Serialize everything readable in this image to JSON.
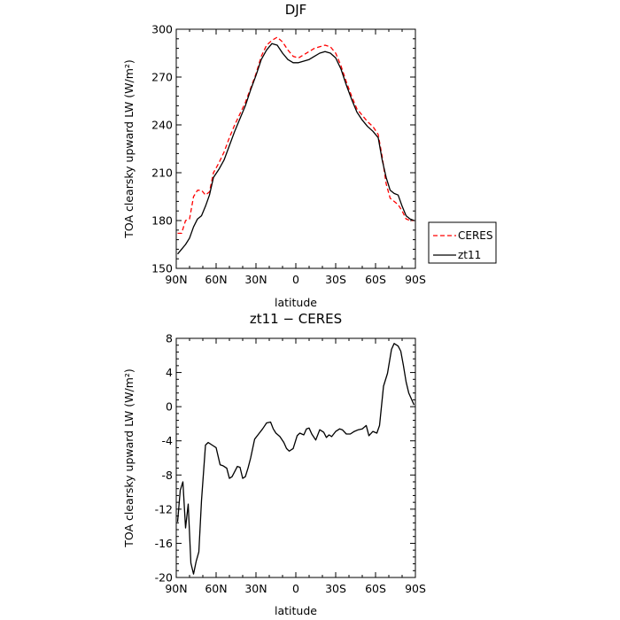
{
  "chart_data": [
    {
      "type": "line",
      "title": "DJF",
      "xlabel": "latitude",
      "ylabel": "TOA clearsky upward LW (W/m²)",
      "xlim": [
        90,
        -90
      ],
      "ylim": [
        150,
        300
      ],
      "xticks": [
        90,
        60,
        30,
        0,
        -30,
        -60,
        -90
      ],
      "xtick_labels": [
        "90N",
        "60N",
        "30N",
        "0",
        "30S",
        "60S",
        "90S"
      ],
      "yticks": [
        150,
        180,
        210,
        240,
        270,
        300
      ],
      "ytick_labels": [
        "150",
        "180",
        "210",
        "240",
        "270",
        "300"
      ],
      "legend_position": "outside-right",
      "series": [
        {
          "name": "CERES",
          "color": "#ff0000",
          "dash": "dashed",
          "x": [
            89,
            86,
            83,
            80,
            77,
            74,
            71,
            68,
            65,
            62,
            58,
            54,
            50,
            46,
            42,
            38,
            34,
            30,
            26,
            22,
            18,
            14,
            10,
            6,
            2,
            -2,
            -6,
            -10,
            -14,
            -18,
            -22,
            -26,
            -30,
            -34,
            -38,
            -42,
            -46,
            -50,
            -54,
            -58,
            -62,
            -65,
            -68,
            -71,
            -74,
            -77,
            -80,
            -83,
            -86,
            -89
          ],
          "y": [
            172,
            172,
            180,
            181,
            195,
            199,
            199,
            196,
            198,
            210,
            216,
            223,
            232,
            240,
            247,
            254,
            263,
            272,
            283,
            290,
            293,
            295,
            292,
            287,
            283,
            282,
            284,
            286,
            288,
            289,
            290,
            289,
            285,
            277,
            267,
            258,
            250,
            246,
            242,
            239,
            234,
            220,
            203,
            194,
            192,
            190,
            186,
            181,
            180,
            180
          ]
        },
        {
          "name": "zt11",
          "color": "#000000",
          "dash": "solid",
          "x": [
            89,
            86,
            83,
            80,
            77,
            74,
            71,
            68,
            65,
            62,
            58,
            54,
            50,
            46,
            42,
            38,
            34,
            30,
            26,
            22,
            18,
            14,
            10,
            6,
            2,
            -2,
            -6,
            -10,
            -14,
            -18,
            -22,
            -26,
            -30,
            -34,
            -38,
            -42,
            -46,
            -50,
            -54,
            -58,
            -62,
            -65,
            -68,
            -71,
            -74,
            -77,
            -80,
            -83,
            -86,
            -89
          ],
          "y": [
            159,
            162,
            165,
            169,
            176,
            181,
            183,
            189,
            196,
            207,
            212,
            218,
            227,
            236,
            244,
            252,
            262,
            271,
            281,
            287,
            291,
            290,
            285,
            281,
            279,
            279,
            280,
            281,
            283,
            285,
            286,
            285,
            282,
            275,
            265,
            256,
            248,
            243,
            239,
            236,
            232,
            218,
            207,
            199,
            197,
            196,
            189,
            183,
            181,
            180
          ]
        }
      ]
    },
    {
      "type": "line",
      "title": "zt11 − CERES",
      "xlabel": "latitude",
      "ylabel": "TOA clearsky upward LW (W/m²)",
      "xlim": [
        90,
        -90
      ],
      "ylim": [
        -20,
        8
      ],
      "xticks": [
        90,
        60,
        30,
        0,
        -30,
        -60,
        -90
      ],
      "xtick_labels": [
        "90N",
        "60N",
        "30N",
        "0",
        "30S",
        "60S",
        "90S"
      ],
      "yticks": [
        -20,
        -16,
        -12,
        -8,
        -4,
        0,
        4,
        8
      ],
      "ytick_labels": [
        "-20",
        "-16",
        "-12",
        "-8",
        "-4",
        "0",
        "4",
        "8"
      ],
      "series": [
        {
          "color": "#000000",
          "dash": "solid",
          "x": [
            89,
            87,
            85,
            83,
            81,
            79,
            77,
            75,
            73,
            71,
            68,
            66,
            63,
            60,
            57,
            55,
            52,
            50,
            48,
            46,
            44,
            42,
            40,
            38,
            36,
            34,
            31,
            28,
            25,
            22,
            19,
            17,
            15,
            12,
            9,
            7,
            5,
            2,
            -1,
            -3,
            -6,
            -8,
            -10,
            -12,
            -15,
            -18,
            -21,
            -23,
            -25,
            -27,
            -30,
            -33,
            -35,
            -38,
            -41,
            -44,
            -47,
            -50,
            -53,
            -55,
            -58,
            -61,
            -63,
            -66,
            -69,
            -72,
            -74,
            -77,
            -79,
            -81,
            -83,
            -85,
            -87,
            -89
          ],
          "y": [
            -13.5,
            -9.8,
            -8.8,
            -14.2,
            -11.4,
            -18.3,
            -19.6,
            -18.1,
            -17.0,
            -11.0,
            -4.5,
            -4.2,
            -4.5,
            -4.8,
            -6.8,
            -6.9,
            -7.2,
            -8.4,
            -8.2,
            -7.6,
            -7.0,
            -7.1,
            -8.4,
            -8.2,
            -7.2,
            -6.0,
            -3.8,
            -3.2,
            -2.6,
            -1.9,
            -1.8,
            -2.6,
            -3.1,
            -3.5,
            -4.2,
            -4.9,
            -5.2,
            -4.9,
            -3.4,
            -3.1,
            -3.3,
            -2.6,
            -2.5,
            -3.2,
            -3.9,
            -2.7,
            -3.0,
            -3.6,
            -3.3,
            -3.5,
            -2.9,
            -2.6,
            -2.7,
            -3.2,
            -3.2,
            -2.9,
            -2.7,
            -2.6,
            -2.2,
            -3.4,
            -2.9,
            -3.1,
            -2.2,
            2.4,
            3.9,
            6.7,
            7.4,
            7.1,
            6.5,
            4.8,
            2.9,
            1.6,
            0.9,
            0.2
          ]
        }
      ]
    }
  ]
}
